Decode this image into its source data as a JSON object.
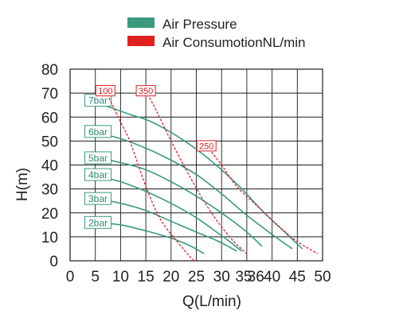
{
  "chart_data": {
    "type": "line",
    "xlabel": "Q(L/min)",
    "ylabel": "H(m)",
    "xlim": [
      0,
      50
    ],
    "ylim": [
      0,
      80
    ],
    "x_ticks": [
      "0",
      "5",
      "10",
      "15",
      "20",
      "25",
      "30",
      "35",
      "36",
      "40",
      "45",
      "50"
    ],
    "x_tick_values": [
      0,
      5,
      10,
      15,
      20,
      25,
      30,
      35,
      36,
      40,
      45,
      50
    ],
    "y_ticks": [
      "0",
      "10",
      "20",
      "30",
      "40",
      "50",
      "60",
      "70",
      "80"
    ],
    "y_tick_values": [
      0,
      10,
      20,
      30,
      40,
      50,
      60,
      70,
      80
    ],
    "grid": true,
    "legend": {
      "position": "top",
      "items": [
        {
          "label": "Air Pressure",
          "color": "#3a9a7e"
        },
        {
          "label": "Air ConsumotionNL/min",
          "color": "#e02020"
        }
      ]
    },
    "pressure_curves": [
      {
        "name": "7bar",
        "color": "#3a9a7e",
        "points": [
          [
            3,
            67
          ],
          [
            5,
            66
          ],
          [
            8,
            64
          ],
          [
            12,
            61
          ],
          [
            15,
            59
          ],
          [
            18,
            56
          ],
          [
            22,
            51
          ],
          [
            26,
            45
          ],
          [
            30,
            38
          ],
          [
            34,
            30
          ],
          [
            38,
            21
          ],
          [
            42,
            13
          ],
          [
            46,
            5
          ]
        ]
      },
      {
        "name": "6bar",
        "color": "#3a9a7e",
        "points": [
          [
            3,
            54
          ],
          [
            5,
            53.5
          ],
          [
            10,
            51
          ],
          [
            15,
            47
          ],
          [
            20,
            42
          ],
          [
            25,
            36
          ],
          [
            30,
            28
          ],
          [
            35,
            19
          ],
          [
            40,
            11
          ],
          [
            44,
            5
          ]
        ]
      },
      {
        "name": "5bar",
        "color": "#3a9a7e",
        "points": [
          [
            3,
            43
          ],
          [
            5,
            43
          ],
          [
            10,
            41
          ],
          [
            15,
            38
          ],
          [
            20,
            33
          ],
          [
            25,
            27
          ],
          [
            30,
            20
          ],
          [
            35,
            12
          ],
          [
            38,
            6
          ]
        ]
      },
      {
        "name": "4bar",
        "color": "#3a9a7e",
        "points": [
          [
            3,
            36
          ],
          [
            5,
            35.5
          ],
          [
            10,
            33
          ],
          [
            15,
            29
          ],
          [
            20,
            24
          ],
          [
            25,
            18
          ],
          [
            29,
            12
          ],
          [
            31,
            9
          ],
          [
            34,
            4
          ]
        ]
      },
      {
        "name": "3bar",
        "color": "#3a9a7e",
        "points": [
          [
            3,
            26
          ],
          [
            5,
            26
          ],
          [
            10,
            24
          ],
          [
            15,
            21
          ],
          [
            20,
            16.5
          ],
          [
            25,
            12
          ],
          [
            29.5,
            8
          ],
          [
            33,
            4
          ]
        ]
      },
      {
        "name": "2bar",
        "color": "#3a9a7e",
        "points": [
          [
            3,
            16
          ],
          [
            5,
            16
          ],
          [
            10,
            15
          ],
          [
            15,
            12.5
          ],
          [
            20,
            9.5
          ],
          [
            24,
            6
          ],
          [
            26.5,
            3
          ]
        ]
      }
    ],
    "consumption_curves": [
      {
        "name": "100",
        "color": "#e02020",
        "points": [
          [
            7,
            71
          ],
          [
            10,
            58
          ],
          [
            12,
            49
          ],
          [
            15,
            31
          ],
          [
            18,
            17
          ],
          [
            22,
            6
          ],
          [
            24.5,
            0
          ]
        ]
      },
      {
        "name": "350",
        "color": "#e02020",
        "points": [
          [
            15,
            71
          ],
          [
            17,
            63
          ],
          [
            20,
            50
          ],
          [
            24,
            34
          ],
          [
            28,
            20
          ],
          [
            32,
            9
          ],
          [
            35,
            3
          ]
        ]
      },
      {
        "name": "250",
        "color": "#e02020",
        "points": [
          [
            27,
            48
          ],
          [
            30,
            40
          ],
          [
            33,
            31
          ],
          [
            37,
            23
          ],
          [
            41,
            15
          ],
          [
            45,
            8
          ],
          [
            49,
            3
          ]
        ]
      }
    ]
  }
}
